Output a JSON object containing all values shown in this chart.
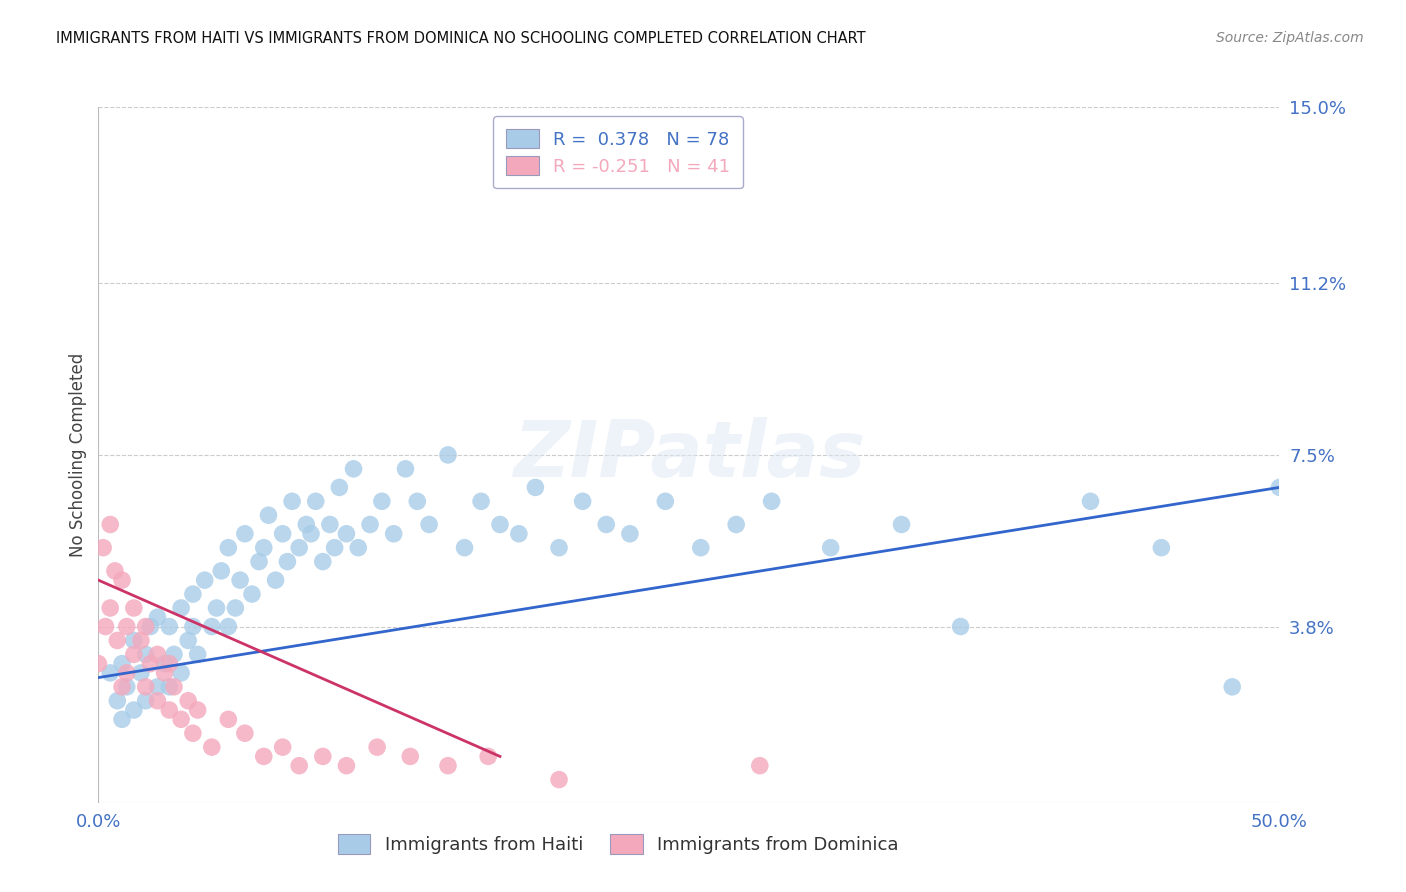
{
  "title": "IMMIGRANTS FROM HAITI VS IMMIGRANTS FROM DOMINICA NO SCHOOLING COMPLETED CORRELATION CHART",
  "source": "Source: ZipAtlas.com",
  "ylabel": "No Schooling Completed",
  "xlim": [
    0.0,
    0.5
  ],
  "ylim": [
    0.0,
    0.15
  ],
  "ytick_labels_right": [
    "15.0%",
    "11.2%",
    "7.5%",
    "3.8%"
  ],
  "ytick_vals_right": [
    0.15,
    0.112,
    0.075,
    0.038
  ],
  "legend_haiti_R": "0.378",
  "legend_haiti_N": "78",
  "legend_dominica_R": "-0.251",
  "legend_dominica_N": "41",
  "color_haiti": "#a8cce8",
  "color_dominica": "#f4a8bc",
  "color_trendline_haiti": "#3366cc",
  "color_trendline_dominica": "#cc3366",
  "color_axis_labels": "#4472c4",
  "background_color": "#ffffff",
  "watermark_text": "ZIPatlas",
  "haiti_x": [
    0.005,
    0.008,
    0.01,
    0.01,
    0.012,
    0.015,
    0.015,
    0.018,
    0.02,
    0.02,
    0.022,
    0.025,
    0.025,
    0.028,
    0.03,
    0.03,
    0.032,
    0.035,
    0.035,
    0.038,
    0.04,
    0.04,
    0.042,
    0.045,
    0.048,
    0.05,
    0.052,
    0.055,
    0.055,
    0.058,
    0.06,
    0.062,
    0.065,
    0.068,
    0.07,
    0.072,
    0.075,
    0.078,
    0.08,
    0.082,
    0.085,
    0.088,
    0.09,
    0.092,
    0.095,
    0.098,
    0.1,
    0.102,
    0.105,
    0.108,
    0.11,
    0.115,
    0.12,
    0.125,
    0.13,
    0.135,
    0.14,
    0.148,
    0.155,
    0.162,
    0.17,
    0.178,
    0.185,
    0.195,
    0.205,
    0.215,
    0.225,
    0.24,
    0.255,
    0.27,
    0.285,
    0.31,
    0.34,
    0.365,
    0.42,
    0.45,
    0.48,
    0.5
  ],
  "haiti_y": [
    0.028,
    0.022,
    0.018,
    0.03,
    0.025,
    0.02,
    0.035,
    0.028,
    0.022,
    0.032,
    0.038,
    0.025,
    0.04,
    0.03,
    0.025,
    0.038,
    0.032,
    0.028,
    0.042,
    0.035,
    0.038,
    0.045,
    0.032,
    0.048,
    0.038,
    0.042,
    0.05,
    0.038,
    0.055,
    0.042,
    0.048,
    0.058,
    0.045,
    0.052,
    0.055,
    0.062,
    0.048,
    0.058,
    0.052,
    0.065,
    0.055,
    0.06,
    0.058,
    0.065,
    0.052,
    0.06,
    0.055,
    0.068,
    0.058,
    0.072,
    0.055,
    0.06,
    0.065,
    0.058,
    0.072,
    0.065,
    0.06,
    0.075,
    0.055,
    0.065,
    0.06,
    0.058,
    0.068,
    0.055,
    0.065,
    0.06,
    0.058,
    0.065,
    0.055,
    0.06,
    0.065,
    0.055,
    0.06,
    0.038,
    0.065,
    0.055,
    0.025,
    0.068
  ],
  "dominica_x": [
    0.0,
    0.002,
    0.003,
    0.005,
    0.005,
    0.007,
    0.008,
    0.01,
    0.01,
    0.012,
    0.012,
    0.015,
    0.015,
    0.018,
    0.02,
    0.02,
    0.022,
    0.025,
    0.025,
    0.028,
    0.03,
    0.03,
    0.032,
    0.035,
    0.038,
    0.04,
    0.042,
    0.048,
    0.055,
    0.062,
    0.07,
    0.078,
    0.085,
    0.095,
    0.105,
    0.118,
    0.132,
    0.148,
    0.165,
    0.195,
    0.28
  ],
  "dominica_y": [
    0.03,
    0.055,
    0.038,
    0.06,
    0.042,
    0.05,
    0.035,
    0.048,
    0.025,
    0.038,
    0.028,
    0.042,
    0.032,
    0.035,
    0.025,
    0.038,
    0.03,
    0.022,
    0.032,
    0.028,
    0.02,
    0.03,
    0.025,
    0.018,
    0.022,
    0.015,
    0.02,
    0.012,
    0.018,
    0.015,
    0.01,
    0.012,
    0.008,
    0.01,
    0.008,
    0.012,
    0.01,
    0.008,
    0.01,
    0.005,
    0.008
  ],
  "haiti_trendline_x": [
    0.0,
    0.5
  ],
  "haiti_trendline_y": [
    0.027,
    0.068
  ],
  "dominica_trendline_x": [
    0.0,
    0.17
  ],
  "dominica_trendline_y": [
    0.048,
    0.01
  ]
}
